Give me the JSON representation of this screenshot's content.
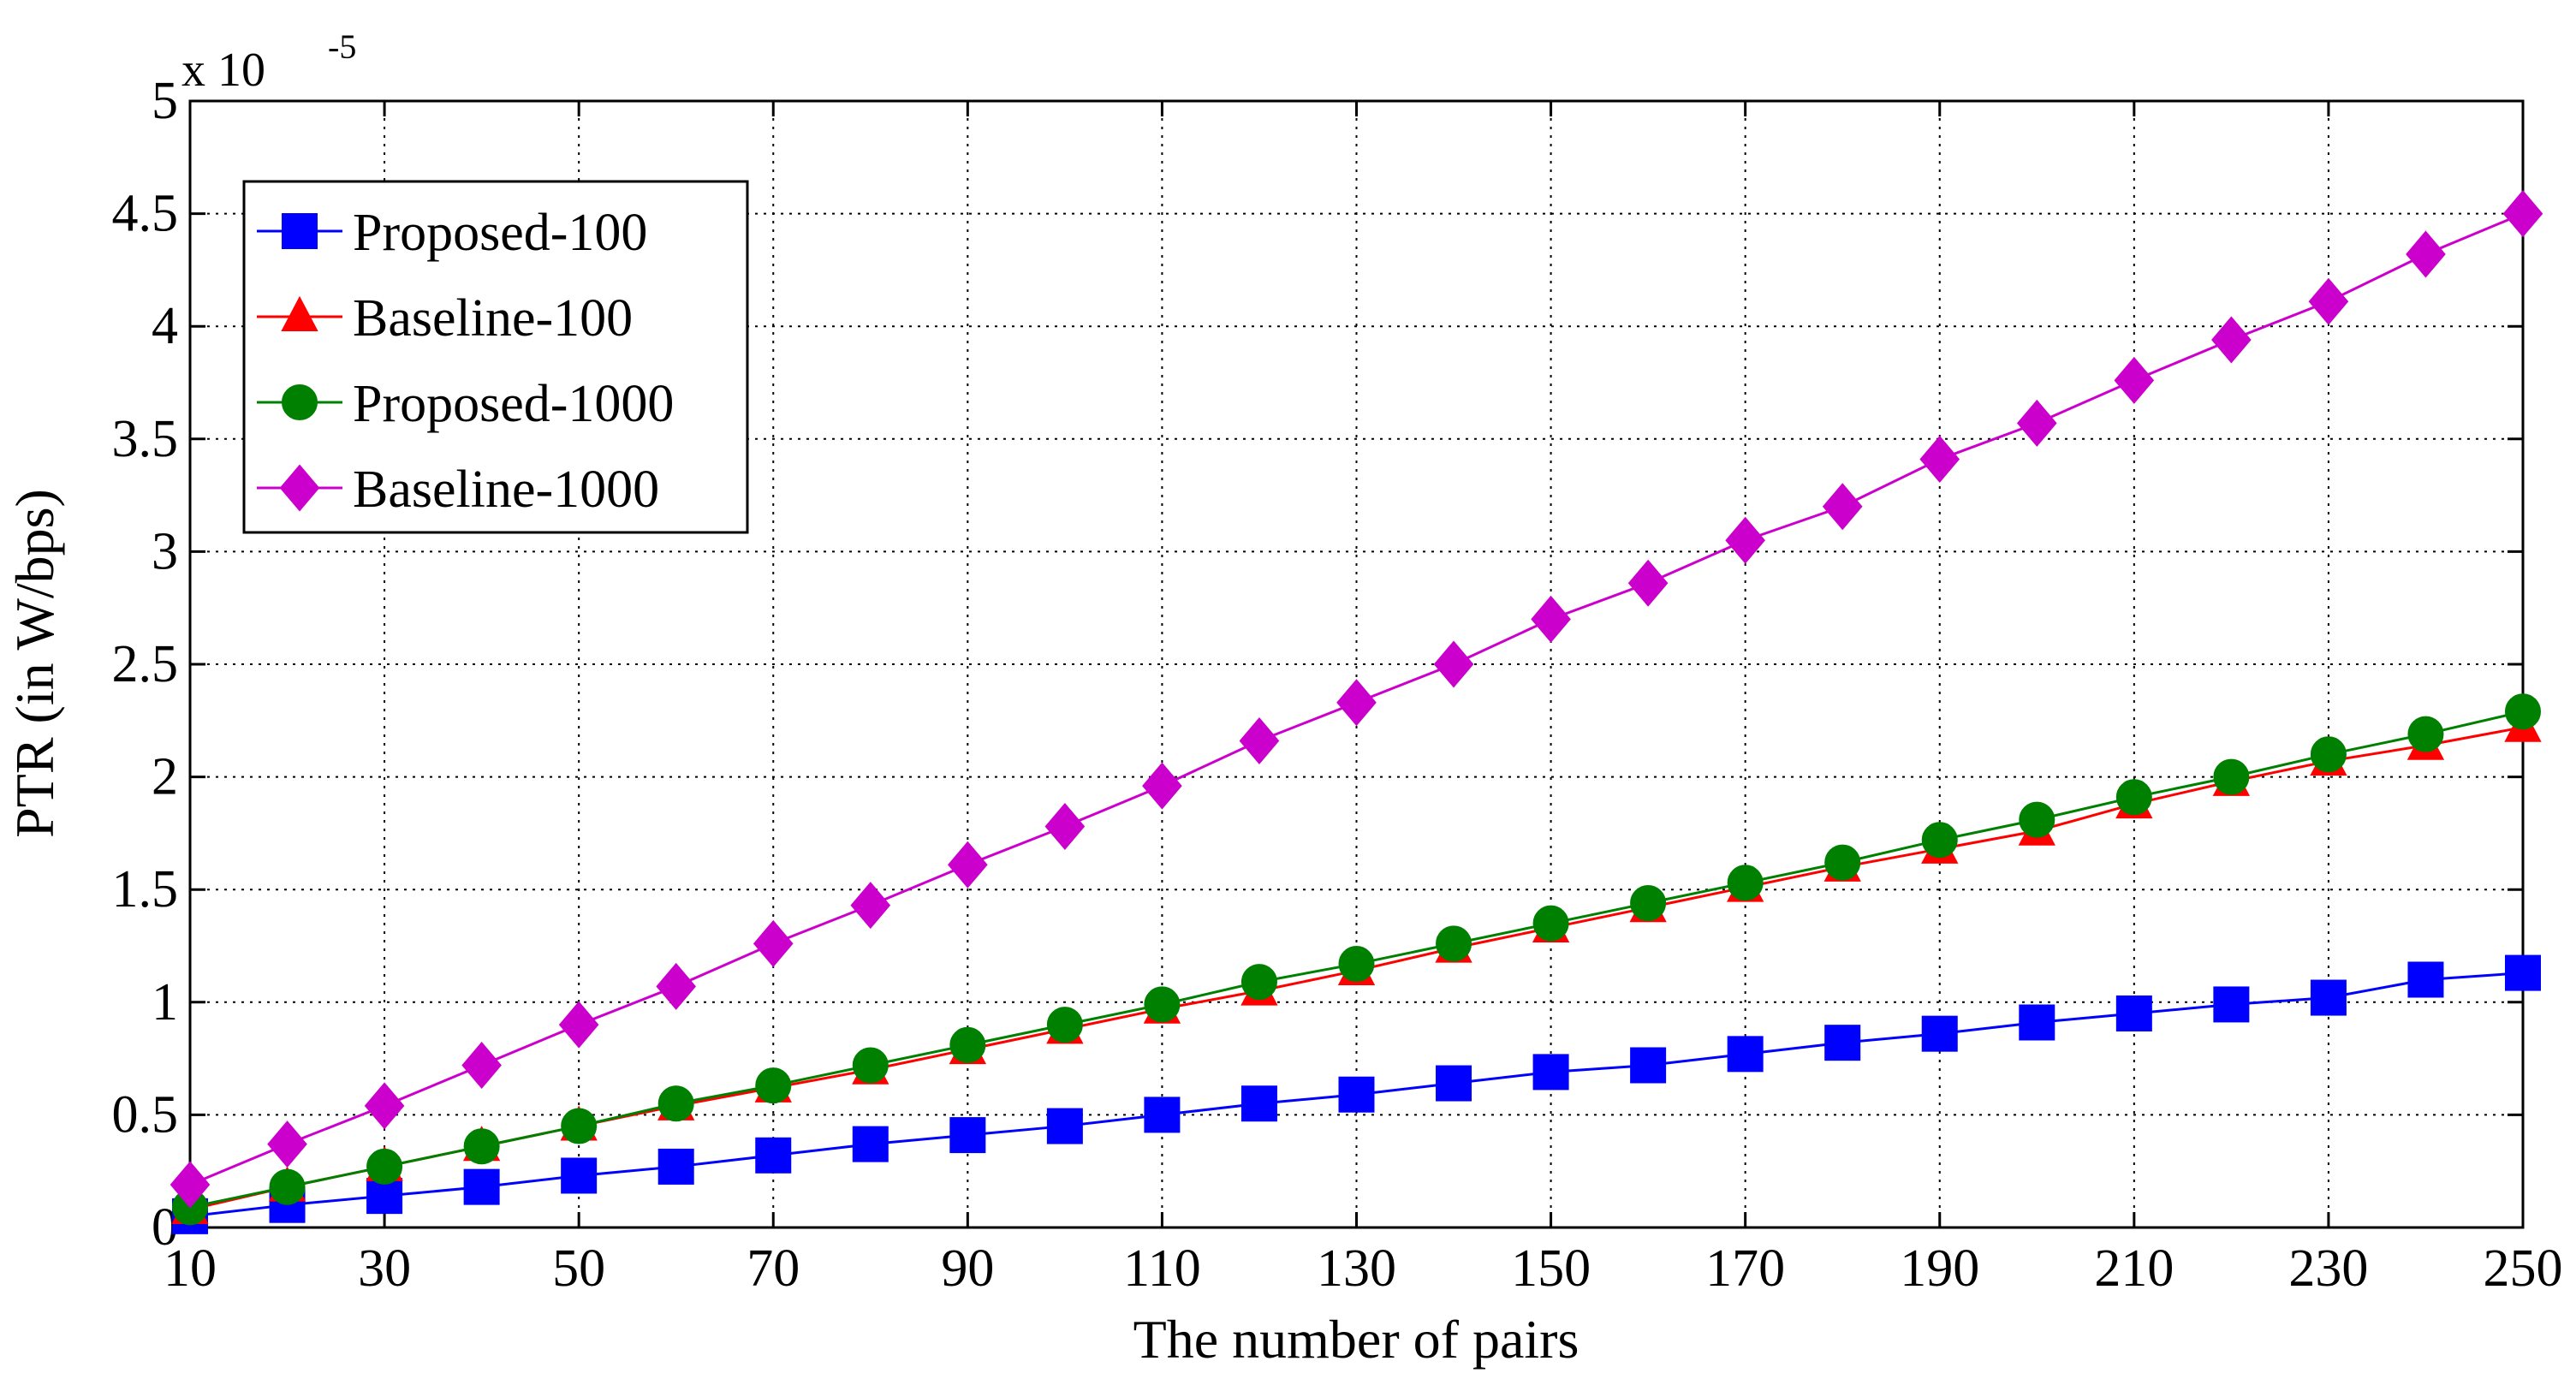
{
  "chart_data": {
    "type": "line",
    "title": "",
    "xlabel": "The number of pairs",
    "ylabel": "PTR (in W/bps)",
    "y_multiplier": {
      "base": "x 10",
      "exponent": "-5"
    },
    "xlim": [
      10,
      250
    ],
    "ylim": [
      0,
      5
    ],
    "grid": true,
    "legend_position": "top-left",
    "x_ticks": [
      "10",
      "30",
      "50",
      "70",
      "90",
      "110",
      "130",
      "150",
      "170",
      "190",
      "210",
      "230",
      "250"
    ],
    "y_ticks": [
      "0",
      "0.5",
      "1",
      "1.5",
      "2",
      "2.5",
      "3",
      "3.5",
      "4",
      "4.5",
      "5"
    ],
    "x": [
      10,
      20,
      30,
      40,
      50,
      60,
      70,
      80,
      90,
      100,
      110,
      120,
      130,
      140,
      150,
      160,
      170,
      180,
      190,
      200,
      210,
      220,
      230,
      240,
      250
    ],
    "series": [
      {
        "name": "Proposed-100",
        "color": "#0000ff",
        "marker": "square",
        "values": [
          0.05,
          0.1,
          0.14,
          0.18,
          0.23,
          0.27,
          0.32,
          0.37,
          0.41,
          0.45,
          0.5,
          0.55,
          0.59,
          0.64,
          0.69,
          0.72,
          0.77,
          0.82,
          0.86,
          0.91,
          0.95,
          0.99,
          1.02,
          1.1,
          1.13
        ]
      },
      {
        "name": "Baseline-100",
        "color": "#ff0000",
        "marker": "triangle",
        "values": [
          0.08,
          0.18,
          0.27,
          0.36,
          0.45,
          0.54,
          0.62,
          0.7,
          0.79,
          0.88,
          0.97,
          1.05,
          1.14,
          1.24,
          1.33,
          1.42,
          1.51,
          1.6,
          1.68,
          1.76,
          1.88,
          1.98,
          2.07,
          2.14,
          2.22
        ]
      },
      {
        "name": "Proposed-1000",
        "color": "#008000",
        "marker": "circle",
        "values": [
          0.09,
          0.18,
          0.27,
          0.36,
          0.45,
          0.55,
          0.63,
          0.72,
          0.81,
          0.9,
          0.99,
          1.09,
          1.17,
          1.26,
          1.35,
          1.44,
          1.53,
          1.62,
          1.72,
          1.81,
          1.91,
          2.0,
          2.1,
          2.19,
          2.29
        ]
      },
      {
        "name": "Baseline-1000",
        "color": "#cc00cc",
        "marker": "diamond",
        "values": [
          0.19,
          0.37,
          0.54,
          0.72,
          0.9,
          1.07,
          1.26,
          1.43,
          1.61,
          1.78,
          1.96,
          2.16,
          2.33,
          2.5,
          2.7,
          2.86,
          3.05,
          3.2,
          3.41,
          3.57,
          3.76,
          3.94,
          4.11,
          4.32,
          4.5
        ]
      }
    ]
  }
}
